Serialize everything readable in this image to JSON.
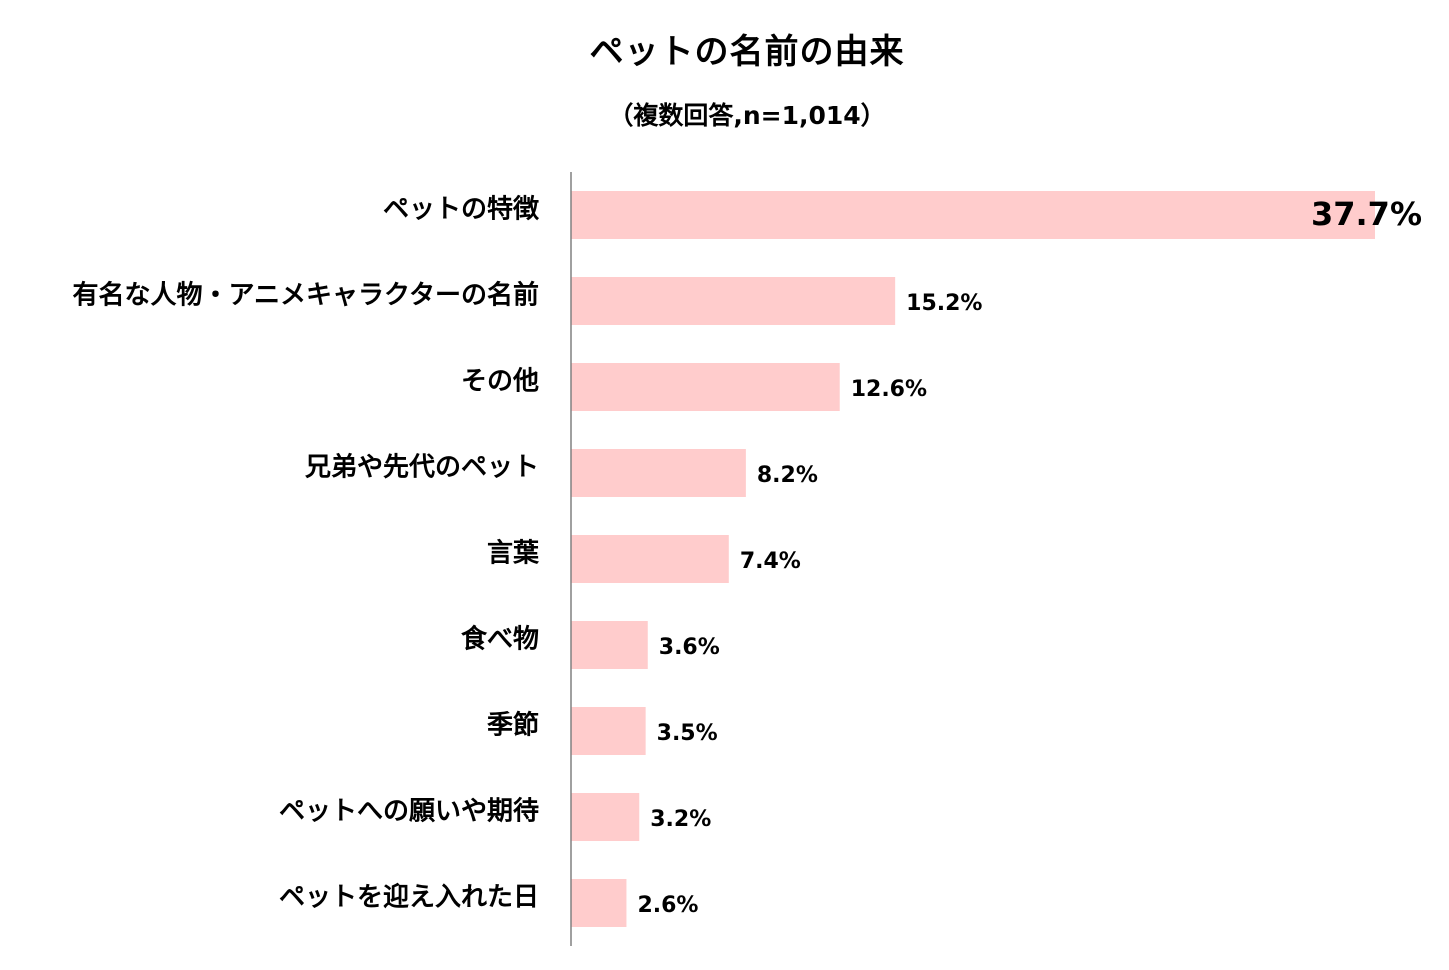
{
  "chart_data": {
    "type": "bar",
    "orientation": "horizontal",
    "title": "ペットの名前の由来",
    "subtitle": "（複数回答,n=1,014）",
    "categories": [
      "ペットの特徴",
      "有名な人物・アニメキャラクターの名前",
      "その他",
      "兄弟や先代のペット",
      "言葉",
      "食べ物",
      "季節",
      "ペットへの願いや期待",
      "ペットを迎え入れた日"
    ],
    "values": [
      37.7,
      15.2,
      12.6,
      8.2,
      7.4,
      3.6,
      3.5,
      3.2,
      2.6
    ],
    "value_labels": [
      "37.7%",
      "15.2%",
      "12.6%",
      "8.2%",
      "7.4%",
      "3.6%",
      "3.5%",
      "3.2%",
      "2.6%"
    ],
    "xlim": [
      0,
      37.7
    ],
    "grid": false,
    "legend": "none",
    "bar_color": "#FFCCCC",
    "axis_color": "#808080"
  }
}
